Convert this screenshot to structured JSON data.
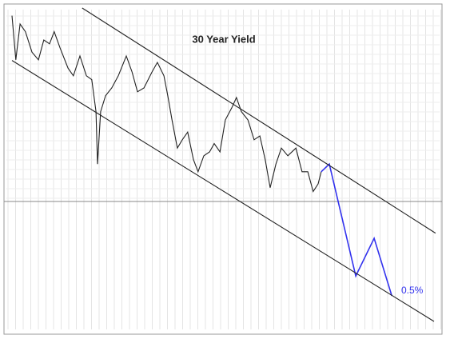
{
  "chart_data": {
    "type": "line",
    "title": "30 Year Yield",
    "annotation": "0.5%",
    "xlim": [
      2009,
      2020
    ],
    "ylim": [
      0,
      5
    ],
    "grid": true,
    "series": [
      {
        "color": "#222222",
        "x": [
          2009.0,
          2009.1,
          2009.21,
          2009.35,
          2009.52,
          2009.69,
          2009.83,
          2009.98,
          2010.1,
          2010.25,
          2010.46,
          2010.6,
          2010.77,
          2010.94,
          2011.08,
          2011.19,
          2011.23,
          2011.31,
          2011.44,
          2011.6,
          2011.77,
          2011.98,
          2012.13,
          2012.27,
          2012.44,
          2012.65,
          2012.79,
          2012.96,
          2013.06,
          2013.17,
          2013.31,
          2013.44,
          2013.58,
          2013.73,
          2013.85,
          2014.0,
          2014.15,
          2014.27,
          2014.42,
          2014.56,
          2014.73,
          2014.85,
          2014.98,
          2015.15,
          2015.31,
          2015.46,
          2015.6,
          2015.73,
          2015.88,
          2016.02,
          2016.19,
          2016.4,
          2016.56,
          2016.71,
          2016.85,
          2016.98,
          2017.06
        ],
        "values": [
          4.88,
          4.19,
          4.75,
          4.63,
          4.31,
          4.19,
          4.5,
          4.44,
          4.63,
          4.38,
          4.06,
          3.94,
          4.25,
          3.94,
          3.88,
          3.38,
          2.56,
          3.38,
          3.63,
          3.75,
          3.94,
          4.25,
          4.0,
          3.69,
          3.75,
          4.0,
          4.15,
          3.94,
          3.63,
          3.25,
          2.81,
          2.94,
          3.06,
          2.63,
          2.44,
          2.69,
          2.75,
          2.88,
          2.75,
          3.25,
          3.44,
          3.6,
          3.38,
          3.25,
          2.94,
          3.0,
          2.63,
          2.19,
          2.56,
          2.81,
          2.69,
          2.81,
          2.44,
          2.44,
          2.13,
          2.25,
          2.44
        ]
      },
      {
        "color": "#3333ee",
        "x": [
          2017.06,
          2017.27,
          2017.96,
          2018.44,
          2018.9
        ],
        "values": [
          2.44,
          2.56,
          0.81,
          1.4,
          0.5
        ]
      },
      {
        "color": "#222222",
        "x": [
          2010.83,
          2020.04
        ],
        "values": [
          5.0,
          1.48
        ]
      },
      {
        "color": "#222222",
        "x": [
          2009.0,
          2020.0
        ],
        "values": [
          4.18,
          0.1
        ]
      }
    ]
  }
}
